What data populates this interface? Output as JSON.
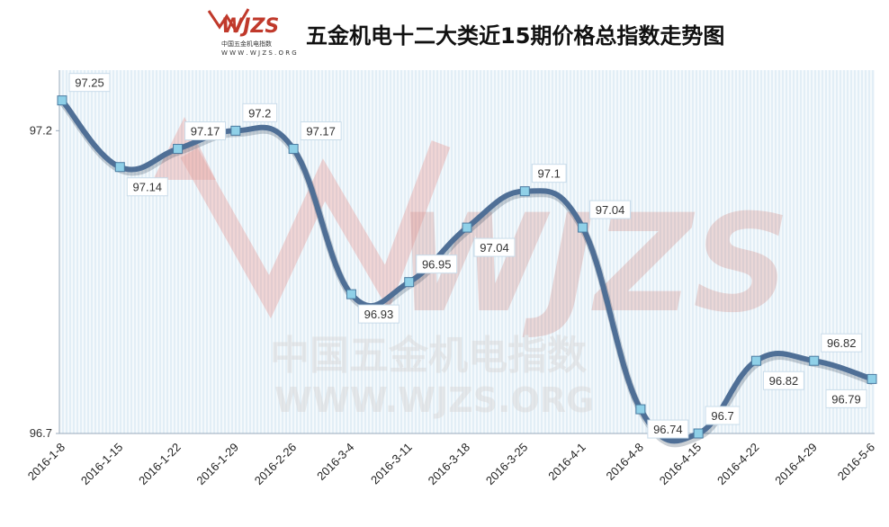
{
  "header": {
    "title": "五金机电十二大类近15期价格总指数走势图",
    "logo_text": "WJZS",
    "logo_sub_cn": "中国五金机电指数",
    "logo_sub_url": "W W W . W J Z S . O R G"
  },
  "watermark": {
    "logo_text": "WJZS",
    "cn": "中国五金机电指数",
    "url": "WWW.WJZS.ORG"
  },
  "colors": {
    "line": "#4f6f96",
    "marker": "#8fd0e8",
    "grid": "#cfe2ef",
    "plot_bg": "#f4f9fc",
    "watermark": "#e35b4f"
  },
  "chart_data": {
    "type": "line",
    "title": "五金机电十二大类近15期价格总指数走势图",
    "categories": [
      "2016-1-8",
      "2016-1-15",
      "2016-1-22",
      "2016-1-29",
      "2016-2-26",
      "2016-3-4",
      "2016-3-11",
      "2016-3-18",
      "2016-3-25",
      "2016-4-1",
      "2016-4-8",
      "2016-4-15",
      "2016-4-22",
      "2016-4-29",
      "2016-5-6"
    ],
    "series": [
      {
        "values": [
          97.25,
          97.14,
          97.17,
          97.2,
          97.17,
          96.93,
          96.95,
          97.04,
          97.1,
          97.04,
          96.74,
          96.7,
          96.82,
          96.82,
          96.79
        ]
      }
    ],
    "labels": [
      "97.25",
      "97.14",
      "97.17",
      "97.2",
      "97.17",
      "96.93",
      "96.95",
      "97.04",
      "97.1",
      "97.04",
      "96.74",
      "96.7",
      "96.82",
      "96.82",
      "96.79"
    ],
    "ylim": [
      96.7,
      97.3
    ],
    "yticks": [
      "97.2",
      "96.7"
    ],
    "ytick_values": [
      97.2,
      96.7
    ],
    "xlabel": "",
    "ylabel": "",
    "grid": true,
    "legend": "none"
  }
}
